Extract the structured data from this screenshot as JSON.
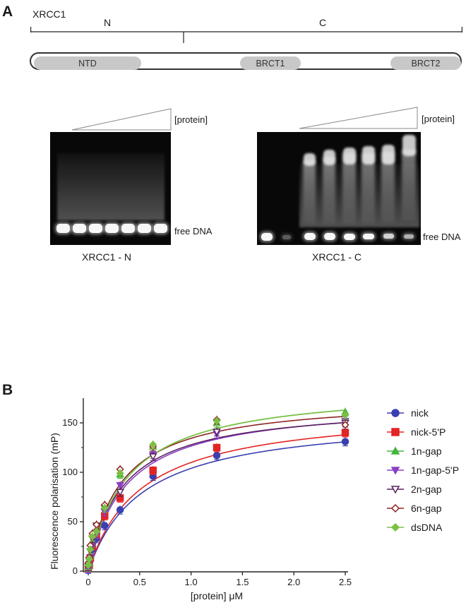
{
  "panel_a": {
    "letter": "A",
    "protein_name": "XRCC1",
    "n_label": "N",
    "c_label": "C",
    "domains": [
      "NTD",
      "BRCT1",
      "BRCT2"
    ],
    "gels": [
      {
        "protein_label": "[protein]",
        "free_label": "free DNA",
        "caption": "XRCC1 - N"
      },
      {
        "protein_label": "[protein]",
        "free_label": "free DNA",
        "caption": "XRCC1 - C"
      }
    ]
  },
  "panel_b": {
    "letter": "B"
  },
  "chart_data": {
    "type": "scatter",
    "title": "",
    "xlabel": "[protein] μM",
    "ylabel": "Fluorescence polarisation (mP)",
    "xlim": [
      0,
      2.5
    ],
    "ylim": [
      0,
      175
    ],
    "xticks": [
      "0",
      "0.5",
      "1.0",
      "1.5",
      "2.0",
      "2.5"
    ],
    "yticks": [
      "0",
      "50",
      "100",
      "150"
    ],
    "grid": false,
    "legend_position": "right",
    "x": [
      0,
      0.01,
      0.02,
      0.04,
      0.08,
      0.16,
      0.31,
      0.63,
      1.25,
      2.5
    ],
    "series": [
      {
        "name": "nick",
        "color": "#3a3fb0",
        "marker": "circle-filled",
        "values": [
          2,
          5,
          12,
          22,
          33,
          46,
          62,
          96,
          117,
          131
        ],
        "fit": {
          "bmax": 158,
          "kd": 0.52,
          "c": 0
        }
      },
      {
        "name": "nick-5'P",
        "color": "#e32424",
        "marker": "square-filled",
        "values": [
          3,
          6,
          13,
          25,
          38,
          56,
          74,
          102,
          125,
          140
        ],
        "fit": {
          "bmax": 166,
          "kd": 0.51,
          "c": 0
        }
      },
      {
        "name": "1n-gap",
        "color": "#43b43c",
        "marker": "triangle-filled",
        "values": [
          4,
          8,
          16,
          28,
          42,
          66,
          98,
          126,
          150,
          161
        ],
        "fit": {
          "bmax": 187,
          "kd": 0.37,
          "c": 0
        }
      },
      {
        "name": "1n-gap-5'P",
        "color": "#8a3fc6",
        "marker": "triangle-down-filled",
        "values": [
          3,
          7,
          14,
          25,
          37,
          60,
          87,
          118,
          139,
          152
        ],
        "fit": {
          "bmax": 172,
          "kd": 0.36,
          "c": 0
        }
      },
      {
        "name": "2n-gap",
        "color": "#5b2160",
        "marker": "triangle-down-open",
        "values": [
          5,
          10,
          20,
          33,
          46,
          64,
          80,
          116,
          141,
          150
        ],
        "fit": {
          "bmax": 170,
          "kd": 0.33,
          "c": 0
        }
      },
      {
        "name": "6n-gap",
        "color": "#8e2424",
        "marker": "diamond-open",
        "values": [
          8,
          14,
          26,
          38,
          47,
          67,
          103,
          126,
          153,
          148
        ],
        "fit": {
          "bmax": 176,
          "kd": 0.31,
          "c": 0
        }
      },
      {
        "name": "dsDNA",
        "color": "#7bc043",
        "marker": "diamond-filled",
        "values": [
          6,
          12,
          22,
          35,
          40,
          64,
          99,
          128,
          152,
          158
        ],
        "fit": {
          "bmax": 187,
          "kd": 0.37,
          "c": 0
        }
      }
    ]
  }
}
